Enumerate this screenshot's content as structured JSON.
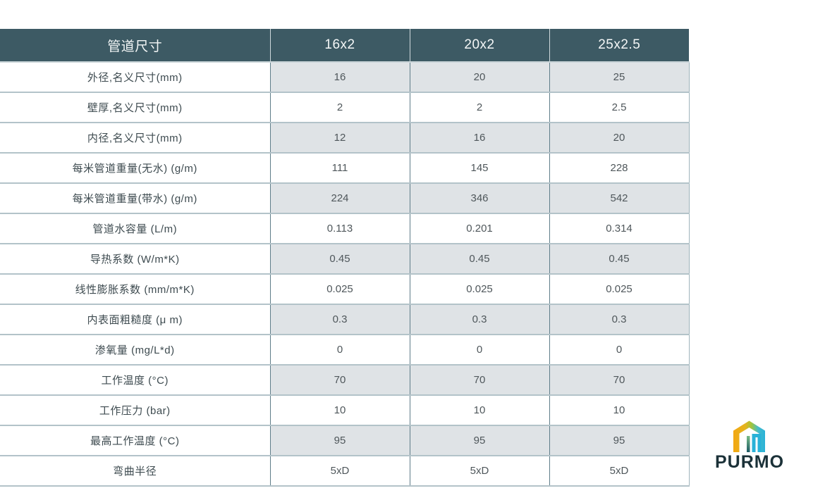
{
  "table": {
    "header": {
      "label_col": "管道尺寸",
      "columns": [
        "16x2",
        "20x2",
        "25x2.5"
      ]
    },
    "rows": [
      {
        "label": "外径,名义尺寸(mm)",
        "values": [
          "16",
          "20",
          "25"
        ]
      },
      {
        "label": "壁厚,名义尺寸(mm)",
        "values": [
          "2",
          "2",
          "2.5"
        ]
      },
      {
        "label": "内径,名义尺寸(mm)",
        "values": [
          "12",
          "16",
          "20"
        ]
      },
      {
        "label": "每米管道重量(无水) (g/m)",
        "values": [
          "111",
          "145",
          "228"
        ]
      },
      {
        "label": "每米管道重量(带水) (g/m)",
        "values": [
          "224",
          "346",
          "542"
        ]
      },
      {
        "label": "管道水容量 (L/m)",
        "values": [
          "0.113",
          "0.201",
          "0.314"
        ]
      },
      {
        "label": "导热系数 (W/m*K)",
        "values": [
          "0.45",
          "0.45",
          "0.45"
        ]
      },
      {
        "label": "线性膨胀系数 (mm/m*K)",
        "values": [
          "0.025",
          "0.025",
          "0.025"
        ]
      },
      {
        "label": "内表面粗糙度 (μ m)",
        "values": [
          "0.3",
          "0.3",
          "0.3"
        ]
      },
      {
        "label": "渗氧量 (mg/L*d)",
        "values": [
          "0",
          "0",
          "0"
        ]
      },
      {
        "label": "工作温度 (°C)",
        "values": [
          "70",
          "70",
          "70"
        ]
      },
      {
        "label": "工作压力 (bar)",
        "values": [
          "10",
          "10",
          "10"
        ]
      },
      {
        "label": "最高工作温度 (°C)",
        "values": [
          "95",
          "95",
          "95"
        ]
      },
      {
        "label": "弯曲半径",
        "values": [
          "5xD",
          "5xD",
          "5xD"
        ]
      }
    ]
  },
  "logo": {
    "brand": "PURMO",
    "icon": "house-icon"
  },
  "colors": {
    "header_bg": "#3d5a64",
    "shaded_cell": "#dfe3e6",
    "horizontal_border": "#b3c3c9",
    "vertical_border": "#5f7d89",
    "logo_yellow": "#f3a712",
    "logo_green": "#9dc53f",
    "logo_cyan": "#29b2d8",
    "logo_teal_dark": "#1d5a66",
    "logo_text": "#1b3138"
  }
}
